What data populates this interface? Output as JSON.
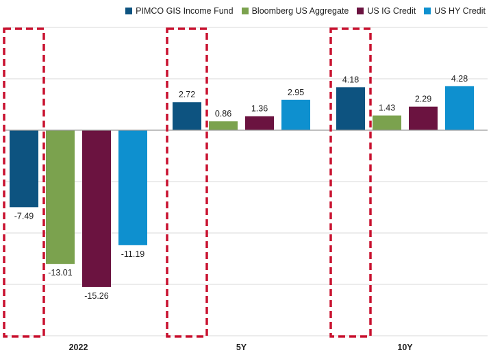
{
  "chart_data": {
    "type": "bar",
    "categories": [
      "2022",
      "5Y",
      "10Y"
    ],
    "series": [
      {
        "name": "PIMCO GIS Income Fund",
        "color": "#0d5380",
        "values": [
          -7.49,
          2.72,
          4.18
        ],
        "labels": [
          "-7.49",
          "2.72",
          "4.18"
        ]
      },
      {
        "name": "Bloomberg US Aggregate",
        "color": "#7ba24e",
        "values": [
          -13.01,
          0.86,
          1.43
        ],
        "labels": [
          "-13.01",
          "0.86",
          "1.43"
        ]
      },
      {
        "name": "US IG Credit",
        "color": "#6b1340",
        "values": [
          -15.26,
          1.36,
          2.29
        ],
        "labels": [
          "-15.26",
          "1.36",
          "2.29"
        ]
      },
      {
        "name": "US HY Credit",
        "color": "#0e90cf",
        "values": [
          -11.19,
          2.95,
          4.28
        ],
        "labels": [
          "-11.19",
          "2.95",
          "4.28"
        ]
      }
    ],
    "ylim": [
      -20,
      10
    ],
    "grid": true,
    "legend_position": "top-right",
    "highlight": {
      "series": "PIMCO GIS Income Fund",
      "style": "red dashed box",
      "color": "#c8102e"
    }
  }
}
